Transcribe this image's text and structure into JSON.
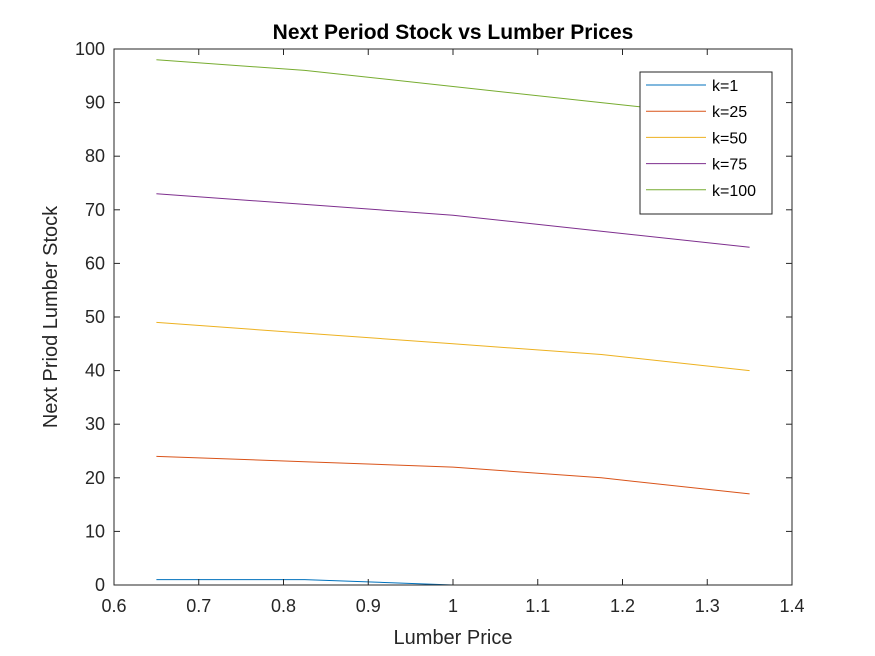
{
  "chart_data": {
    "type": "line",
    "title": "Next Period Stock vs Lumber Prices",
    "xlabel": "Lumber Price",
    "ylabel": "Next Priod Lumber Stock",
    "xlim": [
      0.6,
      1.4
    ],
    "ylim": [
      0,
      100
    ],
    "xticks": [
      "0.6",
      "0.7",
      "0.8",
      "0.9",
      "1",
      "1.1",
      "1.2",
      "1.3",
      "1.4"
    ],
    "yticks": [
      "0",
      "10",
      "20",
      "30",
      "40",
      "50",
      "60",
      "70",
      "80",
      "90",
      "100"
    ],
    "x": [
      0.65,
      0.825,
      1.0,
      1.175,
      1.35
    ],
    "grid": false,
    "legend_position": "top-right",
    "series": [
      {
        "name": "k=1",
        "color": "#0072BD",
        "values": [
          1,
          1,
          0,
          0,
          0
        ]
      },
      {
        "name": "k=25",
        "color": "#D95319",
        "values": [
          24,
          23,
          22,
          20,
          17
        ]
      },
      {
        "name": "k=50",
        "color": "#EDB120",
        "values": [
          49,
          47,
          45,
          43,
          40
        ]
      },
      {
        "name": "k=75",
        "color": "#7E2F8E",
        "values": [
          73,
          71,
          69,
          66,
          63
        ]
      },
      {
        "name": "k=100",
        "color": "#77AC30",
        "values": [
          98,
          96,
          93,
          90,
          87
        ]
      }
    ]
  }
}
